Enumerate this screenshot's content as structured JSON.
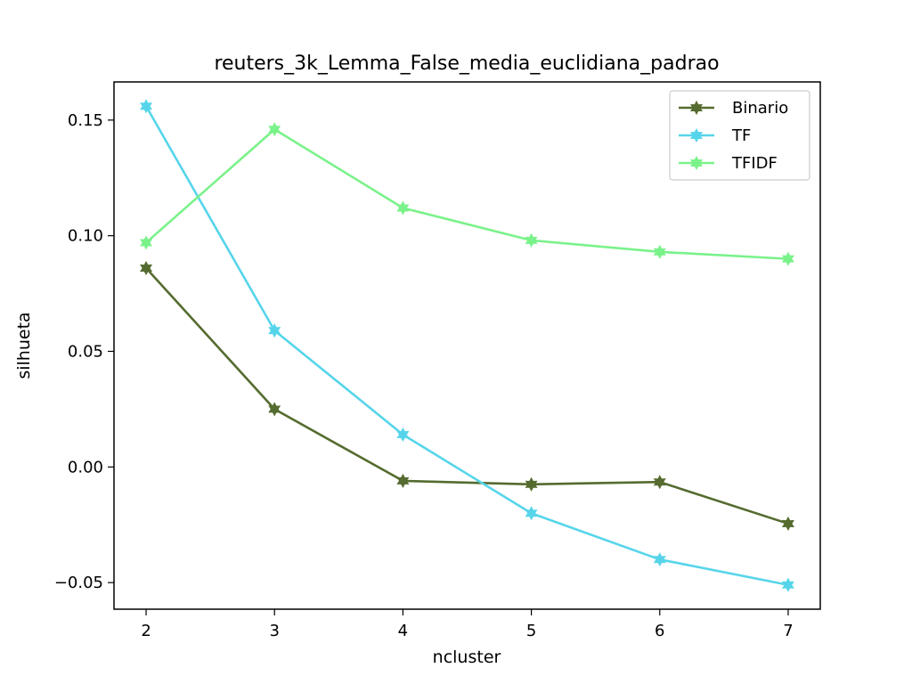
{
  "chart_data": {
    "type": "line",
    "title": "reuters_3k_Lemma_False_media_euclidiana_padrao",
    "xlabel": "ncluster",
    "ylabel": "silhueta",
    "x": [
      2,
      3,
      4,
      5,
      6,
      7
    ],
    "xlim": [
      1.75,
      7.25
    ],
    "ylim": [
      -0.0615,
      0.1665
    ],
    "xticks": [
      2,
      3,
      4,
      5,
      6,
      7
    ],
    "xtick_labels": [
      "2",
      "3",
      "4",
      "5",
      "6",
      "7"
    ],
    "yticks": [
      -0.05,
      0.0,
      0.05,
      0.1,
      0.15
    ],
    "ytick_labels": [
      "−0.05",
      "0.00",
      "0.05",
      "0.10",
      "0.15"
    ],
    "grid": false,
    "legend_position": "top-right",
    "series": [
      {
        "name": "Binario",
        "color": "#556b2f",
        "marker": "star",
        "values": [
          0.086,
          0.025,
          -0.006,
          -0.0075,
          -0.0065,
          -0.0245
        ]
      },
      {
        "name": "TF",
        "color": "#56d5ea",
        "marker": "star",
        "values": [
          0.156,
          0.059,
          0.014,
          -0.02,
          -0.04,
          -0.051
        ]
      },
      {
        "name": "TFIDF",
        "color": "#7af28a",
        "marker": "star",
        "values": [
          0.097,
          0.146,
          0.112,
          0.098,
          0.093,
          0.09
        ]
      }
    ]
  }
}
